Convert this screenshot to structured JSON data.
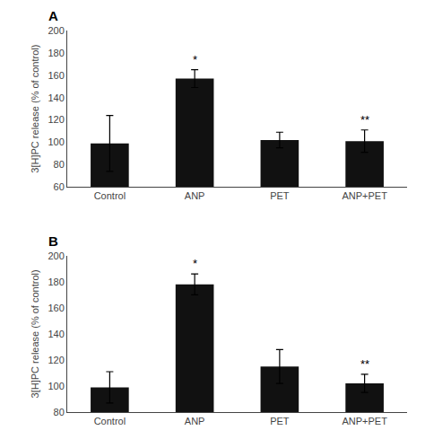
{
  "chart_data": [
    {
      "type": "bar",
      "title": "A",
      "categories": [
        "Control",
        "ANP",
        "PET",
        "ANP+PET"
      ],
      "values": [
        99,
        157,
        102,
        101
      ],
      "errors": [
        25,
        8,
        7,
        10
      ],
      "annotations": [
        null,
        "*",
        null,
        "**"
      ],
      "color": "#111111",
      "ylabel": "3[H]PC release (% of control)",
      "ylim": [
        60,
        200
      ],
      "yticks": [
        60,
        80,
        100,
        120,
        140,
        160,
        180,
        200
      ],
      "grid": false
    },
    {
      "type": "bar",
      "title": "B",
      "categories": [
        "Control",
        "ANP",
        "PET",
        "ANP+PET"
      ],
      "values": [
        99,
        178,
        115,
        102
      ],
      "errors": [
        12,
        8,
        13,
        7
      ],
      "annotations": [
        null,
        "*",
        null,
        "**"
      ],
      "color": "#111111",
      "ylabel": "3[H]PC release (% of control)",
      "ylim": [
        80,
        200
      ],
      "yticks": [
        80,
        100,
        120,
        140,
        160,
        180,
        200
      ],
      "grid": false
    }
  ]
}
